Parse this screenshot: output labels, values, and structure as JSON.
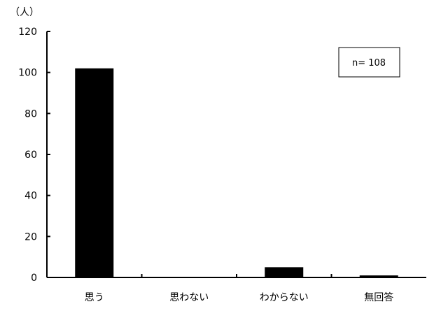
{
  "chart_data": {
    "type": "bar",
    "title": "",
    "ylabel": "（人）",
    "xlabel": "",
    "categories": [
      "思う",
      "思わない",
      "わからない",
      "無回答"
    ],
    "values": [
      102,
      0,
      5,
      1
    ],
    "ylim": [
      0,
      120
    ],
    "yticks": [
      0,
      20,
      40,
      60,
      80,
      100,
      120
    ],
    "grid": false,
    "bar_color": "#000000",
    "annotation": "n= 108",
    "legend": "none"
  }
}
